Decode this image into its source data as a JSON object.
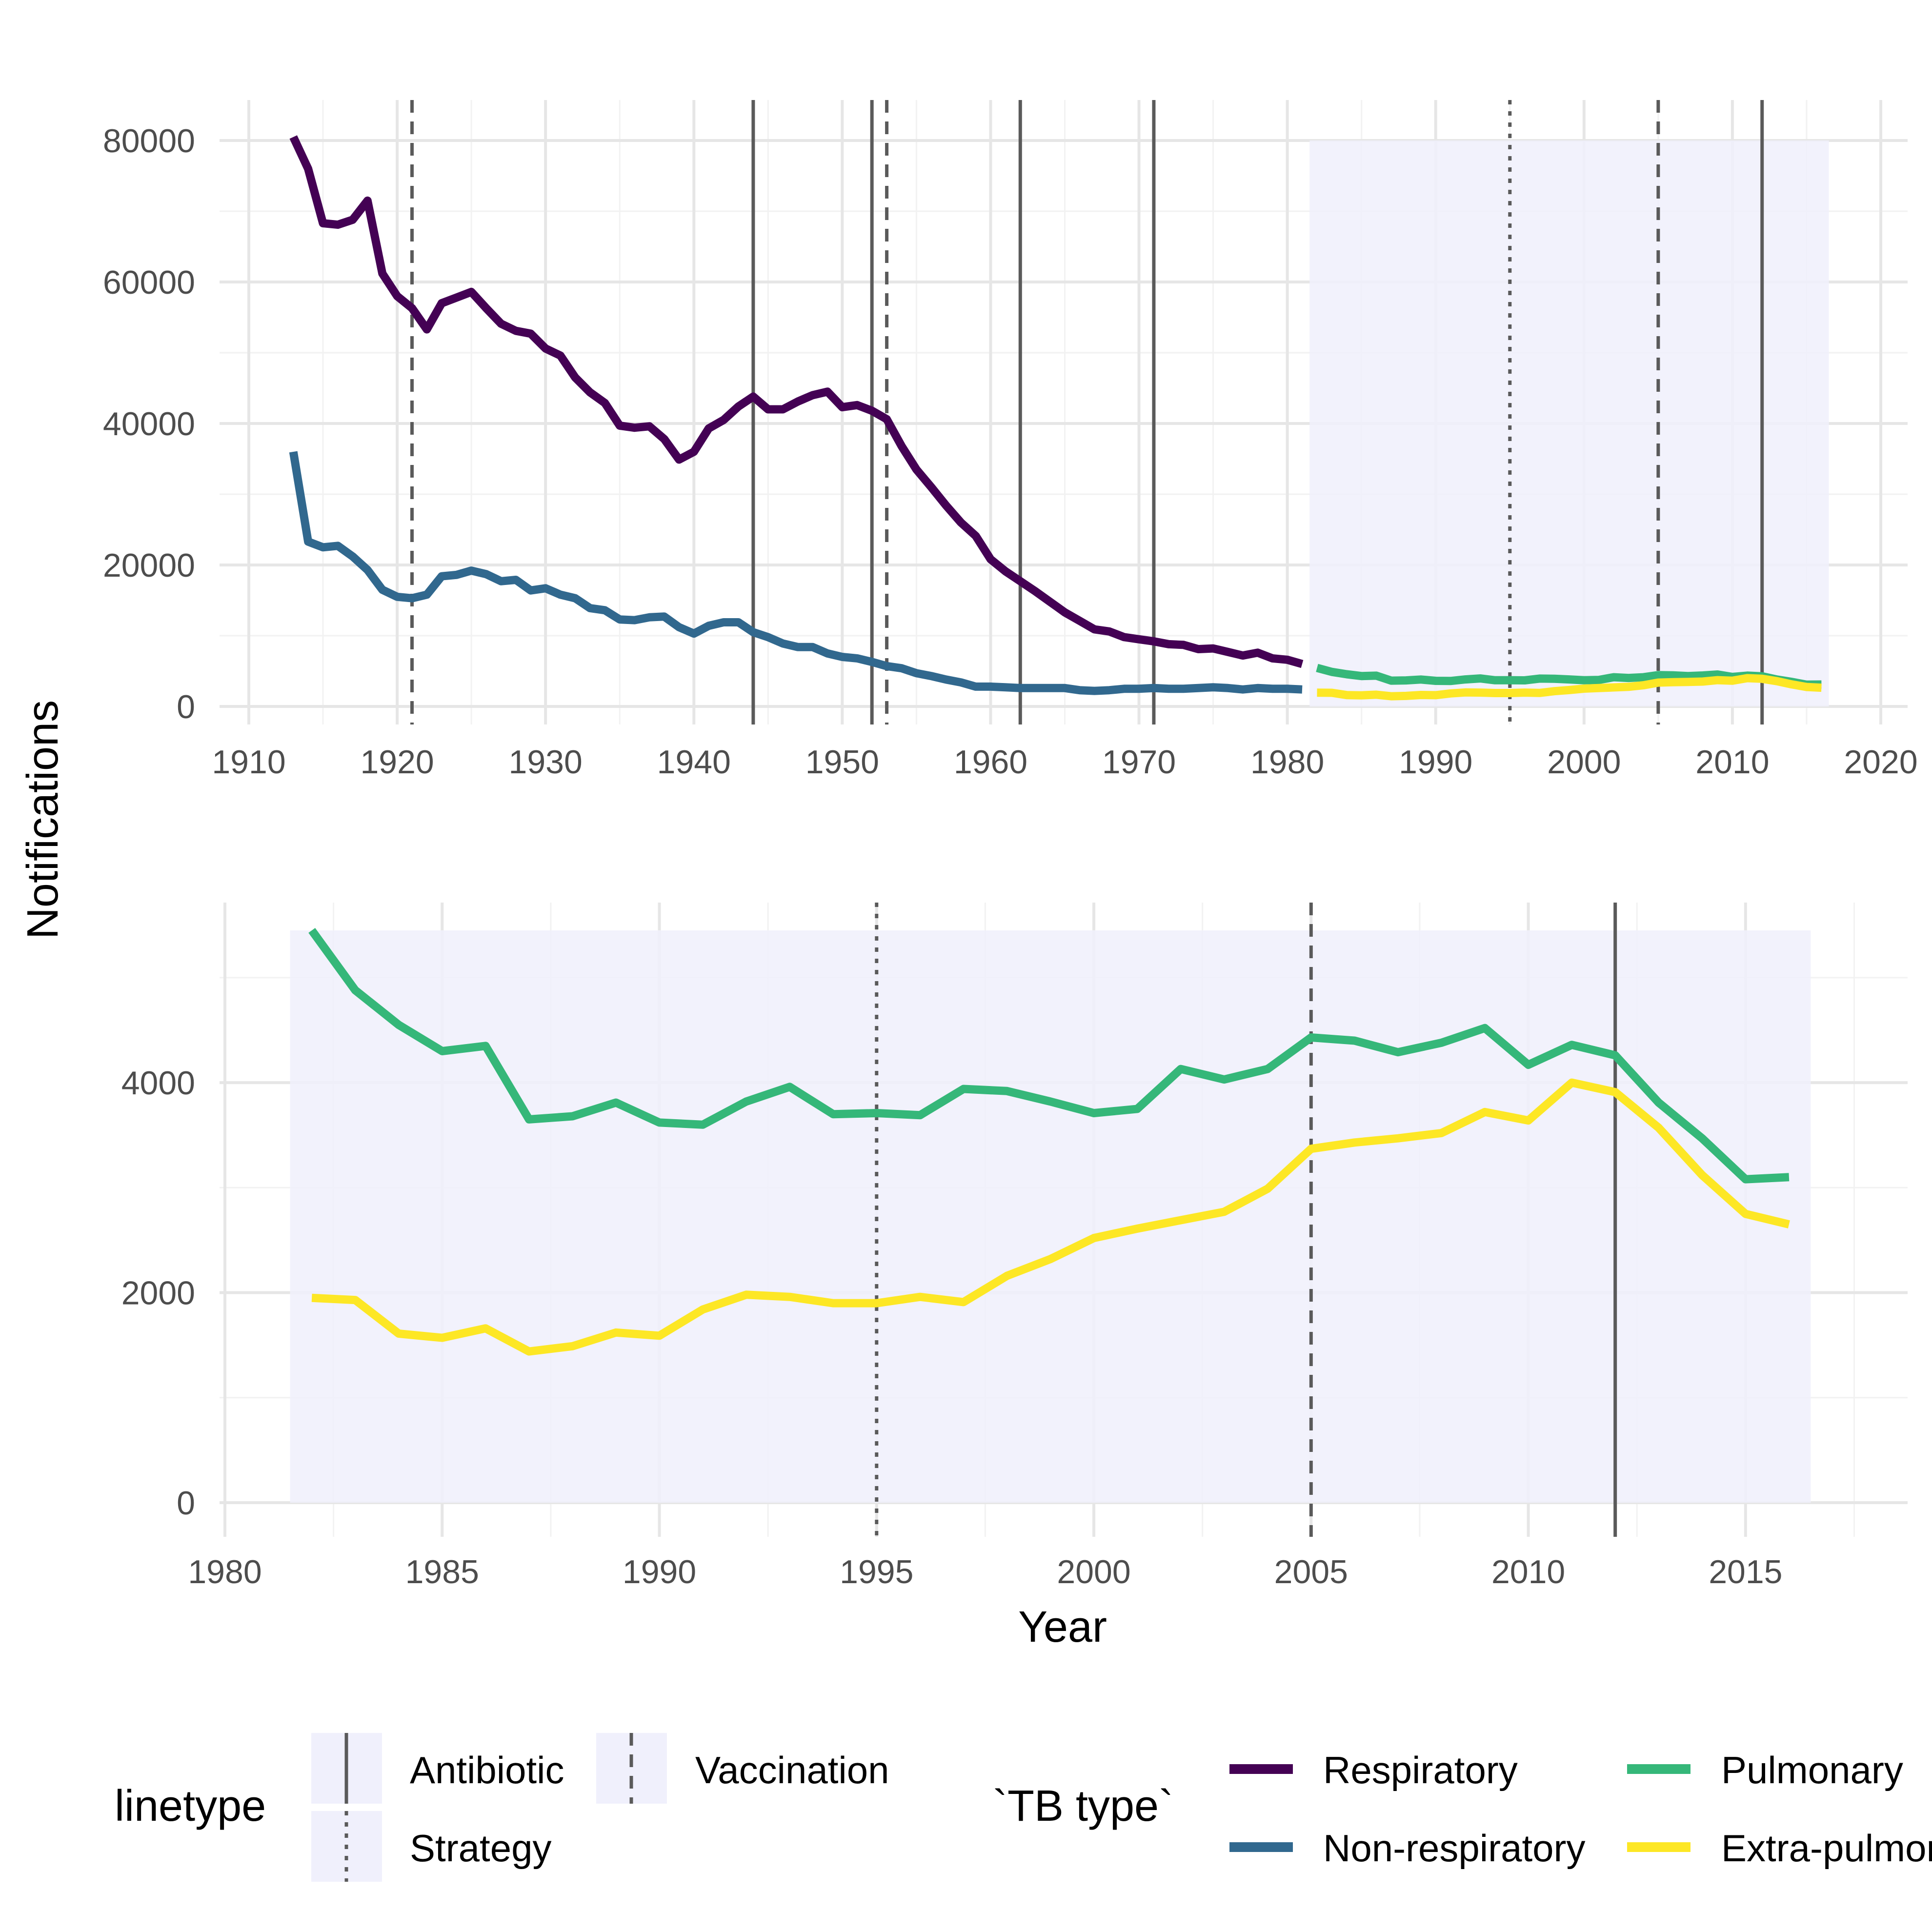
{
  "chart_data": [
    {
      "type": "line",
      "panel": "top",
      "xlim": [
        1910,
        2020
      ],
      "ylim": [
        0,
        80000
      ],
      "x_ticks": [
        "1910",
        "1920",
        "1930",
        "1940",
        "1950",
        "1960",
        "1970",
        "1980",
        "1990",
        "2000",
        "2010",
        "2020"
      ],
      "y_ticks": [
        "0",
        "20000",
        "40000",
        "60000",
        "80000"
      ],
      "highlight_range": [
        1981.5,
        2016.5
      ],
      "grid": true,
      "interventions": [
        {
          "year": 1921,
          "type": "Vaccination"
        },
        {
          "year": 1944,
          "type": "Antibiotic"
        },
        {
          "year": 1952,
          "type": "Antibiotic"
        },
        {
          "year": 1953,
          "type": "Vaccination"
        },
        {
          "year": 1962,
          "type": "Antibiotic"
        },
        {
          "year": 1971,
          "type": "Antibiotic"
        },
        {
          "year": 1995,
          "type": "Strategy"
        },
        {
          "year": 2005,
          "type": "Vaccination"
        },
        {
          "year": 2012,
          "type": "Antibiotic"
        }
      ],
      "series": [
        {
          "name": "Respiratory",
          "color": "#440154",
          "x": [
            1913,
            1914,
            1915,
            1916,
            1917,
            1918,
            1919,
            1920,
            1921,
            1922,
            1923,
            1924,
            1925,
            1926,
            1927,
            1928,
            1929,
            1930,
            1931,
            1932,
            1933,
            1934,
            1935,
            1936,
            1937,
            1938,
            1939,
            1940,
            1941,
            1942,
            1943,
            1944,
            1945,
            1946,
            1947,
            1948,
            1949,
            1950,
            1951,
            1952,
            1953,
            1954,
            1955,
            1956,
            1957,
            1958,
            1959,
            1960,
            1961,
            1962,
            1963,
            1964,
            1965,
            1966,
            1967,
            1968,
            1969,
            1970,
            1971,
            1972,
            1973,
            1974,
            1975,
            1976,
            1977,
            1978,
            1979,
            1980,
            1981
          ],
          "y": [
            80500,
            76000,
            68300,
            68100,
            68800,
            71500,
            61200,
            58000,
            56300,
            53300,
            57000,
            57800,
            58600,
            56300,
            54100,
            53100,
            52700,
            50600,
            49600,
            46500,
            44400,
            42900,
            39700,
            39400,
            39600,
            37800,
            34900,
            36000,
            39300,
            40500,
            42400,
            43800,
            42000,
            42000,
            43100,
            44000,
            44500,
            42300,
            42600,
            41800,
            40600,
            36800,
            33500,
            31000,
            28400,
            26000,
            24100,
            20800,
            19100,
            17700,
            16300,
            14800,
            13300,
            12100,
            10900,
            10600,
            9800,
            9500,
            9200,
            8800,
            8700,
            8100,
            8200,
            7700,
            7200,
            7600,
            6800,
            6600,
            6000
          ]
        },
        {
          "name": "Non-respiratory",
          "color": "#31688e",
          "x": [
            1913,
            1914,
            1915,
            1916,
            1917,
            1918,
            1919,
            1920,
            1921,
            1922,
            1923,
            1924,
            1925,
            1926,
            1927,
            1928,
            1929,
            1930,
            1931,
            1932,
            1933,
            1934,
            1935,
            1936,
            1937,
            1938,
            1939,
            1940,
            1941,
            1942,
            1943,
            1944,
            1945,
            1946,
            1947,
            1948,
            1949,
            1950,
            1951,
            1952,
            1953,
            1954,
            1955,
            1956,
            1957,
            1958,
            1959,
            1960,
            1961,
            1962,
            1963,
            1964,
            1965,
            1966,
            1967,
            1968,
            1969,
            1970,
            1971,
            1972,
            1973,
            1974,
            1975,
            1976,
            1977,
            1978,
            1979,
            1980,
            1981
          ],
          "y": [
            36000,
            23300,
            22500,
            22700,
            21200,
            19300,
            16500,
            15500,
            15300,
            15800,
            18400,
            18600,
            19200,
            18700,
            17700,
            17900,
            16400,
            16700,
            15800,
            15300,
            13900,
            13600,
            12300,
            12200,
            12600,
            12700,
            11200,
            10300,
            11400,
            11900,
            11900,
            10500,
            9800,
            8900,
            8400,
            8400,
            7500,
            7000,
            6800,
            6300,
            5700,
            5400,
            4700,
            4300,
            3800,
            3400,
            2800,
            2800,
            2700,
            2600,
            2600,
            2600,
            2600,
            2300,
            2200,
            2300,
            2500,
            2500,
            2600,
            2500,
            2500,
            2600,
            2700,
            2600,
            2400,
            2600,
            2500,
            2500,
            2400
          ]
        },
        {
          "name": "Pulmonary",
          "color": "#35b779",
          "x": [
            1982,
            1983,
            1984,
            1985,
            1986,
            1987,
            1988,
            1989,
            1990,
            1991,
            1992,
            1993,
            1994,
            1995,
            1996,
            1997,
            1998,
            1999,
            2000,
            2001,
            2002,
            2003,
            2004,
            2005,
            2006,
            2007,
            2008,
            2009,
            2010,
            2011,
            2012,
            2013,
            2014,
            2015,
            2016
          ],
          "y": [
            5450,
            4880,
            4550,
            4300,
            4350,
            3650,
            3680,
            3810,
            3620,
            3600,
            3820,
            3960,
            3700,
            3710,
            3690,
            3940,
            3920,
            3820,
            3710,
            3750,
            4130,
            4030,
            4130,
            4430,
            4400,
            4290,
            4380,
            4520,
            4170,
            4360,
            4260,
            3810,
            3470,
            3080,
            3100
          ]
        },
        {
          "name": "Extra-pulmonary",
          "color": "#fde725",
          "x": [
            1982,
            1983,
            1984,
            1985,
            1986,
            1987,
            1988,
            1989,
            1990,
            1991,
            1992,
            1993,
            1994,
            1995,
            1996,
            1997,
            1998,
            1999,
            2000,
            2001,
            2002,
            2003,
            2004,
            2005,
            2006,
            2007,
            2008,
            2009,
            2010,
            2011,
            2012,
            2013,
            2014,
            2015,
            2016
          ],
          "y": [
            1950,
            1930,
            1610,
            1570,
            1660,
            1440,
            1490,
            1620,
            1590,
            1840,
            1980,
            1960,
            1900,
            1900,
            1960,
            1910,
            2160,
            2320,
            2520,
            2610,
            2690,
            2770,
            2990,
            3370,
            3430,
            3470,
            3520,
            3720,
            3640,
            4000,
            3910,
            3570,
            3120,
            2750,
            2650
          ]
        }
      ]
    },
    {
      "type": "line",
      "panel": "bottom",
      "xlim": [
        1980,
        2018
      ],
      "ylim": [
        0,
        5450
      ],
      "x_ticks": [
        "1980",
        "1985",
        "1990",
        "1995",
        "2000",
        "2005",
        "2010",
        "2015"
      ],
      "y_ticks": [
        "0",
        "2000",
        "4000"
      ],
      "xlabel": "Year",
      "highlight_range": [
        1981.5,
        2016.5
      ],
      "grid": true,
      "interventions": [
        {
          "year": 1995,
          "type": "Strategy"
        },
        {
          "year": 2005,
          "type": "Vaccination"
        },
        {
          "year": 2012,
          "type": "Antibiotic"
        }
      ],
      "series": [
        {
          "name": "Pulmonary",
          "color": "#35b779",
          "x": [
            1982,
            1983,
            1984,
            1985,
            1986,
            1987,
            1988,
            1989,
            1990,
            1991,
            1992,
            1993,
            1994,
            1995,
            1996,
            1997,
            1998,
            1999,
            2000,
            2001,
            2002,
            2003,
            2004,
            2005,
            2006,
            2007,
            2008,
            2009,
            2010,
            2011,
            2012,
            2013,
            2014,
            2015,
            2016
          ],
          "y": [
            5450,
            4880,
            4550,
            4300,
            4350,
            3650,
            3680,
            3810,
            3620,
            3600,
            3820,
            3960,
            3700,
            3710,
            3690,
            3940,
            3920,
            3820,
            3710,
            3750,
            4130,
            4030,
            4130,
            4430,
            4400,
            4290,
            4380,
            4520,
            4170,
            4360,
            4260,
            3810,
            3470,
            3080,
            3100
          ]
        },
        {
          "name": "Extra-pulmonary",
          "color": "#fde725",
          "x": [
            1982,
            1983,
            1984,
            1985,
            1986,
            1987,
            1988,
            1989,
            1990,
            1991,
            1992,
            1993,
            1994,
            1995,
            1996,
            1997,
            1998,
            1999,
            2000,
            2001,
            2002,
            2003,
            2004,
            2005,
            2006,
            2007,
            2008,
            2009,
            2010,
            2011,
            2012,
            2013,
            2014,
            2015,
            2016
          ],
          "y": [
            1950,
            1930,
            1610,
            1570,
            1660,
            1440,
            1490,
            1620,
            1590,
            1840,
            1980,
            1960,
            1900,
            1900,
            1960,
            1910,
            2160,
            2320,
            2520,
            2610,
            2690,
            2770,
            2990,
            3370,
            3430,
            3470,
            3520,
            3720,
            3640,
            4000,
            3910,
            3570,
            3120,
            2750,
            2650
          ]
        }
      ]
    }
  ],
  "shared": {
    "ylabel": "Notifications"
  },
  "legend": {
    "linetype": {
      "title": "linetype",
      "items": [
        {
          "label": "Antibiotic",
          "style": "solid"
        },
        {
          "label": "Vaccination",
          "style": "dashed"
        },
        {
          "label": "Strategy",
          "style": "dotted"
        }
      ]
    },
    "tb_type": {
      "title": "`TB type`",
      "items": [
        {
          "label": "Respiratory",
          "color": "#440154"
        },
        {
          "label": "Pulmonary",
          "color": "#35b779"
        },
        {
          "label": "Non-respiratory",
          "color": "#31688e"
        },
        {
          "label": "Extra-pulmonary",
          "color": "#fde725"
        }
      ]
    }
  },
  "colors": {
    "highlight_fill": "#f0f0fc",
    "grid_major": "#e6e6e6",
    "grid_minor": "#f2f2f2",
    "intervention_line": "#5a5a5a"
  }
}
